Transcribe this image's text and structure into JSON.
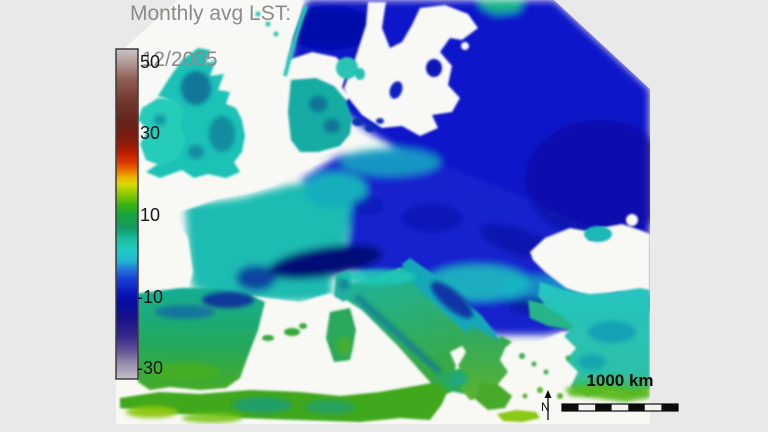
{
  "palette": {
    "background": "#e9e9e9",
    "sea": "#f8f8f5",
    "land_cold": "#0a13c9",
    "land_cold_deep": "#0511a2",
    "land_cool_blue": "#1322cd",
    "land_teal": "#1fbcb2",
    "land_teal_dark": "#0d7c9c",
    "land_green": "#3fa81f",
    "land_yellow_green": "#8cc812",
    "mountain_navy": "#051077",
    "text_gray": "#8b8b8b",
    "scalebar_dark": "#0b0b0b",
    "scalebar_light": "#f2f2f0"
  },
  "header": {
    "title_line1": "Monthly avg LST:",
    "title_line2": "12/2005"
  },
  "colorbar": {
    "ticks": [
      "50",
      "30",
      "10",
      "-10",
      "-30"
    ],
    "gradient_stops": [
      [
        "0%",
        "#cac3c7"
      ],
      [
        "4%",
        "#b39b97"
      ],
      [
        "9%",
        "#8f5f56"
      ],
      [
        "16%",
        "#70382e"
      ],
      [
        "22%",
        "#64231a"
      ],
      [
        "27%",
        "#7e1c0c"
      ],
      [
        "31%",
        "#b21c02"
      ],
      [
        "34%",
        "#d93200"
      ],
      [
        "36.5%",
        "#e86a00"
      ],
      [
        "39%",
        "#ecb400"
      ],
      [
        "41%",
        "#d8d800"
      ],
      [
        "44%",
        "#8cc900"
      ],
      [
        "47%",
        "#3cb410"
      ],
      [
        "50%",
        "#18a53c"
      ],
      [
        "54%",
        "#149963"
      ],
      [
        "58%",
        "#1bc0a5"
      ],
      [
        "61%",
        "#1fcac3"
      ],
      [
        "64%",
        "#21b9cf"
      ],
      [
        "67%",
        "#2472db"
      ],
      [
        "70%",
        "#1a3ad4"
      ],
      [
        "74%",
        "#0b17b7"
      ],
      [
        "77%",
        "#080c9e"
      ],
      [
        "82%",
        "#191289"
      ],
      [
        "87%",
        "#37288b"
      ],
      [
        "91%",
        "#5d4d95"
      ],
      [
        "95%",
        "#9289a9"
      ],
      [
        "100%",
        "#c7bfc9"
      ]
    ]
  },
  "scalebar": {
    "label": "1000 km",
    "segments": 7
  },
  "north_arrow": {
    "label": "N"
  },
  "chart_data": {
    "type": "heatmap",
    "title": "Monthly avg LST: 12/2005",
    "legend_ticks": [
      50,
      30,
      10,
      -10,
      -30
    ],
    "legend_range": [
      -30,
      50
    ],
    "scale_bar_km": 1000,
    "region": "Europe",
    "value_meaning": "monthly average land surface temperature"
  }
}
